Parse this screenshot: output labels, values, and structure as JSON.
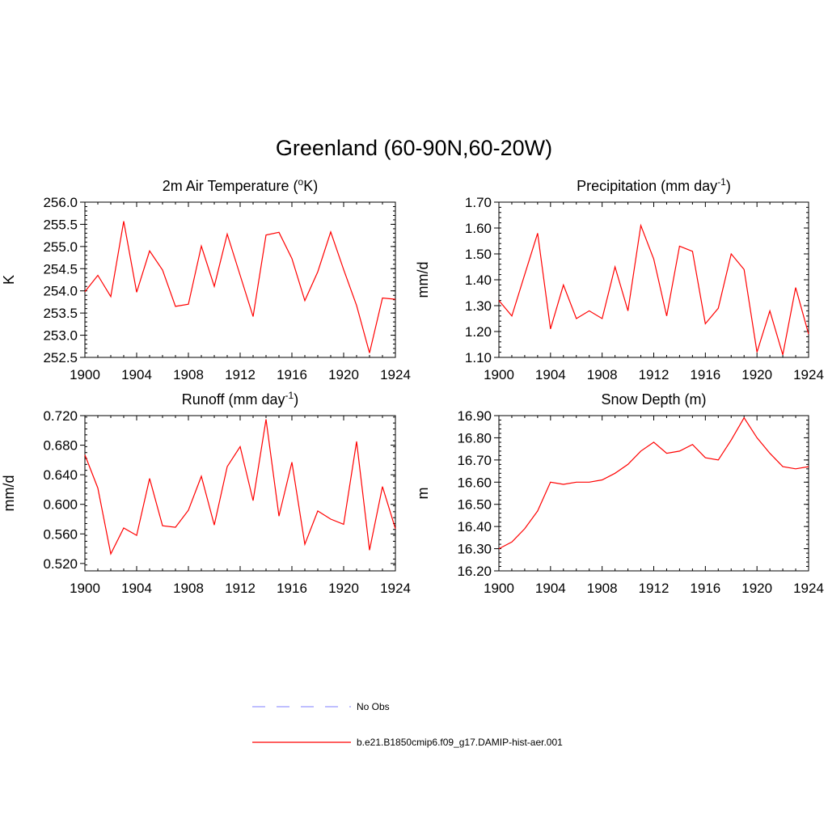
{
  "title": "Greenland (60-90N,60-20W)",
  "legend": {
    "items": [
      {
        "label": "No Obs",
        "color": "#9999ff",
        "style": "dashed"
      },
      {
        "label": "b.e21.B1850cmip6.f09_g17.DAMIP-hist-aer.001",
        "color": "#ff0000",
        "style": "solid"
      }
    ]
  },
  "chart_data": [
    {
      "type": "line",
      "title": "2m Air Temperature (",
      "title_sup": "o",
      "title_post": "K)",
      "ylabel": "K",
      "xlim": [
        1900,
        1924
      ],
      "ylim": [
        252.5,
        256.0
      ],
      "xticks": [
        "1900",
        "1904",
        "1908",
        "1912",
        "1916",
        "1920",
        "1924"
      ],
      "yticks": [
        "252.5",
        "253.0",
        "253.5",
        "254.0",
        "254.5",
        "255.0",
        "255.5",
        "256.0"
      ],
      "x": [
        1900,
        1901,
        1902,
        1903,
        1904,
        1905,
        1906,
        1907,
        1908,
        1909,
        1910,
        1911,
        1912,
        1913,
        1914,
        1915,
        1916,
        1917,
        1918,
        1919,
        1920,
        1921,
        1922,
        1923,
        1924
      ],
      "series": [
        {
          "values": [
            253.98,
            254.35,
            253.87,
            255.57,
            253.97,
            254.9,
            254.47,
            253.65,
            253.7,
            255.01,
            254.1,
            255.28,
            254.35,
            253.42,
            255.26,
            255.32,
            254.73,
            253.78,
            254.43,
            255.33,
            254.48,
            253.67,
            252.6,
            253.84,
            253.81
          ],
          "color": "#ff0000"
        }
      ]
    },
    {
      "type": "line",
      "title": "Precipitation (mm day",
      "title_sup": "-1",
      "title_post": ")",
      "ylabel": "mm/d",
      "xlim": [
        1900,
        1924
      ],
      "ylim": [
        1.1,
        1.7
      ],
      "xticks": [
        "1900",
        "1904",
        "1908",
        "1912",
        "1916",
        "1920",
        "1924"
      ],
      "yticks": [
        "1.10",
        "1.20",
        "1.30",
        "1.40",
        "1.50",
        "1.60",
        "1.70"
      ],
      "x": [
        1900,
        1901,
        1902,
        1903,
        1904,
        1905,
        1906,
        1907,
        1908,
        1909,
        1910,
        1911,
        1912,
        1913,
        1914,
        1915,
        1916,
        1917,
        1918,
        1919,
        1920,
        1921,
        1922,
        1923,
        1924
      ],
      "series": [
        {
          "values": [
            1.32,
            1.26,
            1.42,
            1.58,
            1.21,
            1.38,
            1.25,
            1.28,
            1.25,
            1.45,
            1.28,
            1.61,
            1.48,
            1.26,
            1.53,
            1.51,
            1.23,
            1.29,
            1.5,
            1.44,
            1.12,
            1.28,
            1.11,
            1.37,
            1.19
          ],
          "color": "#ff0000"
        }
      ]
    },
    {
      "type": "line",
      "title": "Runoff (mm day",
      "title_sup": "-1",
      "title_post": ")",
      "ylabel": "mm/d",
      "xlim": [
        1900,
        1924
      ],
      "ylim": [
        0.51,
        0.72
      ],
      "xticks": [
        "1900",
        "1904",
        "1908",
        "1912",
        "1916",
        "1920",
        "1924"
      ],
      "yticks": [
        "0.520",
        "0.560",
        "0.600",
        "0.640",
        "0.680",
        "0.720"
      ],
      "ytick_values": [
        0.52,
        0.56,
        0.6,
        0.64,
        0.68,
        0.72
      ],
      "x": [
        1900,
        1901,
        1902,
        1903,
        1904,
        1905,
        1906,
        1907,
        1908,
        1909,
        1910,
        1911,
        1912,
        1913,
        1914,
        1915,
        1916,
        1917,
        1918,
        1919,
        1920,
        1921,
        1922,
        1923,
        1924
      ],
      "series": [
        {
          "values": [
            0.667,
            0.622,
            0.533,
            0.568,
            0.558,
            0.635,
            0.571,
            0.569,
            0.592,
            0.638,
            0.572,
            0.651,
            0.678,
            0.605,
            0.715,
            0.584,
            0.657,
            0.546,
            0.591,
            0.58,
            0.573,
            0.685,
            0.538,
            0.624,
            0.567
          ],
          "color": "#ff0000"
        }
      ]
    },
    {
      "type": "line",
      "title": "Snow Depth (m)",
      "title_sup": "",
      "title_post": "",
      "ylabel": "m",
      "xlim": [
        1900,
        1924
      ],
      "ylim": [
        16.2,
        16.9
      ],
      "xticks": [
        "1900",
        "1904",
        "1908",
        "1912",
        "1916",
        "1920",
        "1924"
      ],
      "yticks": [
        "16.20",
        "16.30",
        "16.40",
        "16.50",
        "16.60",
        "16.70",
        "16.80",
        "16.90"
      ],
      "x": [
        1900,
        1901,
        1902,
        1903,
        1904,
        1905,
        1906,
        1907,
        1908,
        1909,
        1910,
        1911,
        1912,
        1913,
        1914,
        1915,
        1916,
        1917,
        1918,
        1919,
        1920,
        1921,
        1922,
        1923,
        1924
      ],
      "series": [
        {
          "values": [
            16.3,
            16.33,
            16.39,
            16.47,
            16.6,
            16.59,
            16.6,
            16.6,
            16.61,
            16.64,
            16.68,
            16.74,
            16.78,
            16.73,
            16.74,
            16.77,
            16.71,
            16.7,
            16.79,
            16.89,
            16.8,
            16.73,
            16.67,
            16.66,
            16.67
          ],
          "color": "#ff0000"
        }
      ]
    }
  ]
}
